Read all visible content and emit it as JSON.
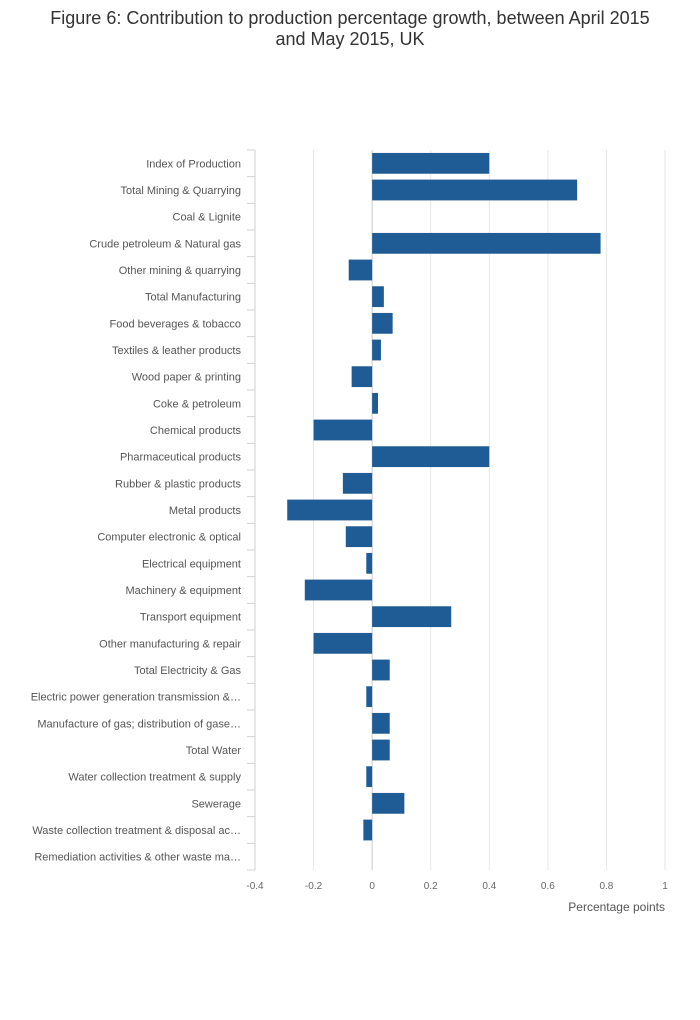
{
  "chart_data": {
    "type": "bar",
    "orientation": "horizontal",
    "title_lines": [
      "Figure 6: Contribution to production percentage growth, between April 2015",
      "and May 2015, UK"
    ],
    "xlabel": "Percentage points",
    "ylabel": "",
    "xlim": [
      -0.4,
      1
    ],
    "xticks": [
      -0.4,
      -0.2,
      0,
      0.2,
      0.4,
      0.6,
      0.8,
      1
    ],
    "xtick_labels": [
      "-0.4",
      "-0.2",
      "0",
      "0.2",
      "0.4",
      "0.6",
      "0.8",
      "1"
    ],
    "grid": true,
    "bar_color": "#1f5b94",
    "categories": [
      "Index of Production",
      "Total Mining & Quarrying",
      "Coal & Lignite",
      "Crude petroleum & Natural gas",
      "Other mining & quarrying",
      "Total Manufacturing",
      "Food beverages & tobacco",
      "Textiles & leather products",
      "Wood paper & printing",
      "Coke & petroleum",
      "Chemical products",
      "Pharmaceutical products",
      "Rubber & plastic products",
      "Metal products",
      "Computer electronic & optical",
      "Electrical equipment",
      "Machinery & equipment",
      "Transport equipment",
      "Other manufacturing & repair",
      "Total Electricity & Gas",
      "Electric power generation transmission &…",
      "Manufacture of gas; distribution of gase…",
      "Total Water",
      "Water collection treatment & supply",
      "Sewerage",
      "Waste collection treatment & disposal ac…",
      "Remediation activities & other waste ma…"
    ],
    "values": [
      0.4,
      0.7,
      0,
      0.78,
      -0.08,
      0.04,
      0.07,
      0.03,
      -0.07,
      0.02,
      -0.2,
      0.4,
      -0.1,
      -0.29,
      -0.09,
      -0.02,
      -0.23,
      0.27,
      -0.2,
      0.06,
      -0.02,
      0.06,
      0.06,
      -0.02,
      0.11,
      -0.03,
      0
    ]
  }
}
